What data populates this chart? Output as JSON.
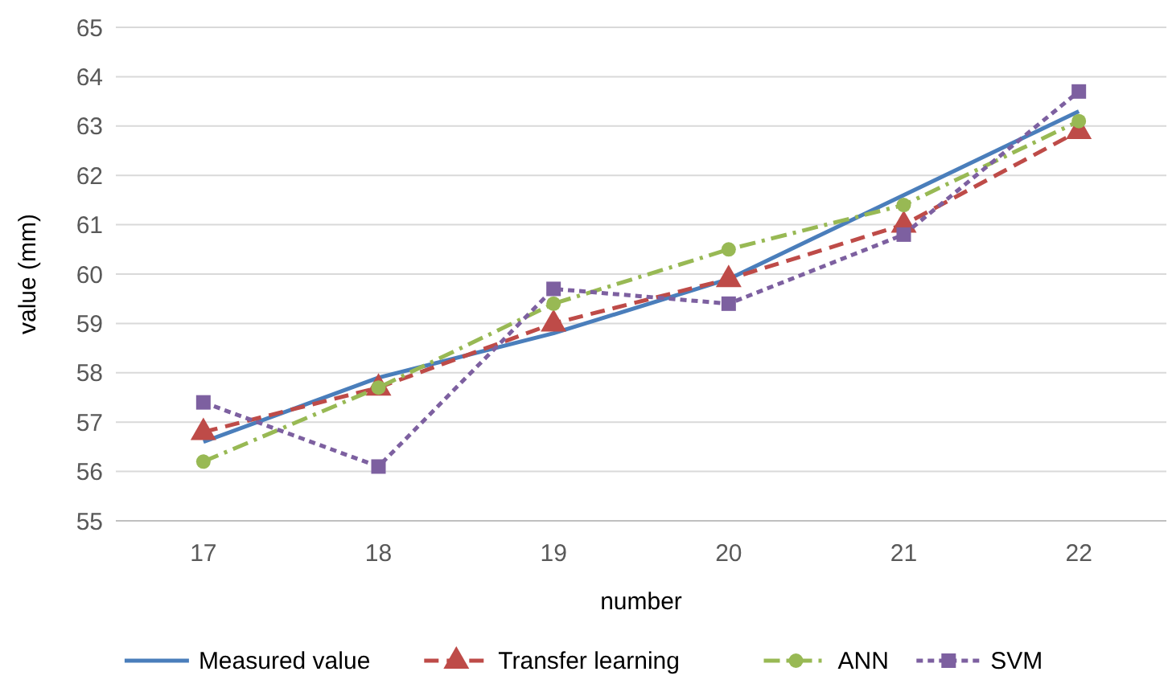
{
  "chart_data": {
    "type": "line",
    "xlabel": "number",
    "ylabel": "value (mm)",
    "categories": [
      "17",
      "18",
      "19",
      "20",
      "21",
      "22"
    ],
    "ylim": [
      55,
      65
    ],
    "yticks": [
      55,
      56,
      57,
      58,
      59,
      60,
      61,
      62,
      63,
      64,
      65
    ],
    "grid": "y",
    "legend": "bottom",
    "series": [
      {
        "name": "Measured value",
        "color": "#4a7ebb",
        "marker": "none",
        "line_style": "solid",
        "values": [
          56.6,
          57.9,
          58.8,
          59.9,
          61.6,
          63.3
        ]
      },
      {
        "name": "Transfer learning",
        "color": "#be4b48",
        "marker": "triangle",
        "line_style": "dashed",
        "values": [
          56.8,
          57.7,
          59.0,
          59.9,
          61.0,
          62.9
        ]
      },
      {
        "name": "ANN",
        "color": "#98b954",
        "marker": "circle",
        "line_style": "dashdot",
        "values": [
          56.2,
          57.7,
          59.4,
          60.5,
          61.4,
          63.1
        ]
      },
      {
        "name": "SVM",
        "color": "#7d60a0",
        "marker": "square",
        "line_style": "dotted",
        "values": [
          57.4,
          56.1,
          59.7,
          59.4,
          60.8,
          63.7
        ]
      }
    ]
  }
}
